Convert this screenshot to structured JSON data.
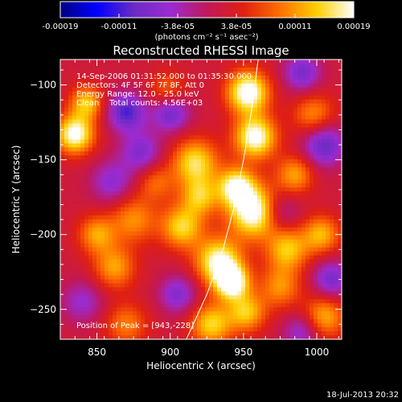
{
  "chart_data": {
    "type": "heatmap",
    "title": "Reconstructed RHESSI Image",
    "xlabel": "Heliocentric X (arcsec)",
    "ylabel": "Heliocentric Y (arcsec)",
    "xlim": [
      825,
      1017
    ],
    "ylim": [
      -270,
      -83
    ],
    "x_ticks": [
      850,
      900,
      950,
      1000
    ],
    "y_ticks": [
      -100,
      -150,
      -200,
      -250
    ],
    "colorbar": {
      "min": -0.00019,
      "max": 0.00019,
      "ticks": [
        "-0.00019",
        "-0.00011",
        "-3.8e-05",
        "3.8e-05",
        "0.00011",
        "0.00019"
      ],
      "unit_label": "(photons cm⁻² s⁻¹ asec⁻²)",
      "colors": [
        "#000080",
        "#0000ff",
        "#6a2bc4",
        "#9b2bd0",
        "#c0185a",
        "#e02010",
        "#ff7000",
        "#ffd000",
        "#ffffff"
      ]
    },
    "annotations": {
      "time_range": "14-Sep-2006 01:31:52.000 to 01:35:30.000",
      "detectors": "Detectors: 4F 5F 6F 7F 8F, Att 0",
      "energy_range": "Energy Range: 12.0 - 25.0 keV",
      "algorithm": "Clean",
      "total_counts": "Total counts: 4.56E+03",
      "peak_position": "Position of Peak = [943,-228]"
    },
    "peak": [
      943,
      -228
    ],
    "limb_curve": [
      [
        911,
        -270
      ],
      [
        925,
        -240
      ],
      [
        936,
        -210
      ],
      [
        944,
        -180
      ],
      [
        950,
        -150
      ],
      [
        955,
        -120
      ],
      [
        960,
        -83
      ]
    ],
    "blobs": [
      {
        "x": 953,
        "y": -105,
        "v": 0.00019,
        "s": 10
      },
      {
        "x": 958,
        "y": -135,
        "v": 0.00018,
        "s": 10
      },
      {
        "x": 957,
        "y": -185,
        "v": 0.00019,
        "s": 12
      },
      {
        "x": 945,
        "y": -168,
        "v": 0.00016,
        "s": 9
      },
      {
        "x": 933,
        "y": -218,
        "v": 0.00017,
        "s": 11
      },
      {
        "x": 942,
        "y": -232,
        "v": 0.00019,
        "s": 8
      },
      {
        "x": 928,
        "y": -260,
        "v": 0.00013,
        "s": 10
      },
      {
        "x": 952,
        "y": -252,
        "v": 0.00012,
        "s": 9
      },
      {
        "x": 835,
        "y": -133,
        "v": 0.00018,
        "s": 9
      },
      {
        "x": 843,
        "y": -112,
        "v": 0.00012,
        "s": 8
      },
      {
        "x": 917,
        "y": -152,
        "v": 0.00014,
        "s": 11
      },
      {
        "x": 908,
        "y": -195,
        "v": 0.00013,
        "s": 10
      },
      {
        "x": 920,
        "y": -175,
        "v": 0.00011,
        "s": 9
      },
      {
        "x": 875,
        "y": -190,
        "v": 9e-05,
        "s": 11
      },
      {
        "x": 850,
        "y": -200,
        "v": 0.0001,
        "s": 9
      },
      {
        "x": 862,
        "y": -222,
        "v": 0.0001,
        "s": 10
      },
      {
        "x": 980,
        "y": -210,
        "v": 0.00012,
        "s": 10
      },
      {
        "x": 1003,
        "y": -200,
        "v": 0.00011,
        "s": 9
      },
      {
        "x": 998,
        "y": -120,
        "v": 9e-05,
        "s": 10
      },
      {
        "x": 985,
        "y": -160,
        "v": 0.0001,
        "s": 9
      },
      {
        "x": 975,
        "y": -235,
        "v": 9e-05,
        "s": 10
      },
      {
        "x": 1005,
        "y": -255,
        "v": 0.00011,
        "s": 10
      },
      {
        "x": 890,
        "y": -165,
        "v": 7e-05,
        "s": 9
      },
      {
        "x": 870,
        "y": -260,
        "v": 8e-05,
        "s": 10
      },
      {
        "x": 898,
        "y": -105,
        "v": 8e-05,
        "s": 9
      },
      {
        "x": 870,
        "y": -118,
        "v": -0.00013,
        "s": 9
      },
      {
        "x": 900,
        "y": -118,
        "v": -0.00012,
        "s": 9
      },
      {
        "x": 1005,
        "y": -140,
        "v": -0.00012,
        "s": 10
      },
      {
        "x": 1010,
        "y": -230,
        "v": -0.0001,
        "s": 9
      },
      {
        "x": 880,
        "y": -145,
        "v": -9e-05,
        "s": 10
      },
      {
        "x": 905,
        "y": -240,
        "v": -9e-05,
        "s": 9
      },
      {
        "x": 860,
        "y": -165,
        "v": -8e-05,
        "s": 10
      },
      {
        "x": 990,
        "y": -92,
        "v": -0.0001,
        "s": 9
      },
      {
        "x": 975,
        "y": -185,
        "v": -7e-05,
        "s": 9
      },
      {
        "x": 990,
        "y": -265,
        "v": -8e-05,
        "s": 9
      },
      {
        "x": 840,
        "y": -245,
        "v": -7e-05,
        "s": 10
      }
    ]
  },
  "footer": {
    "date": "18-Jul-2013 20:32"
  }
}
